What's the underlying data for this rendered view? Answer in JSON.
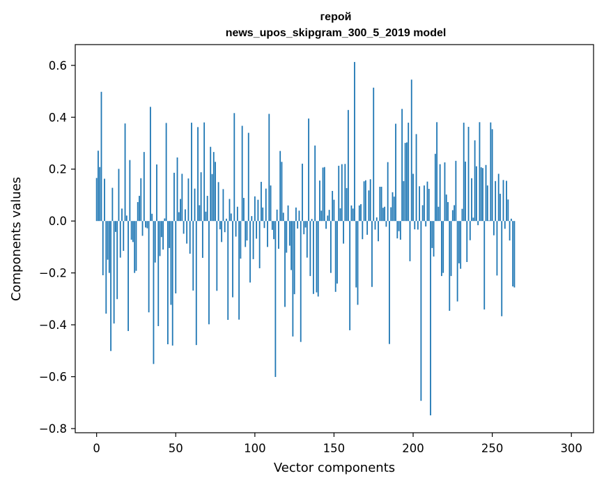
{
  "chart_data": {
    "type": "bar",
    "title": "герой",
    "subtitle": "news_upos_skipgram_300_5_2019 model",
    "xlabel": "Vector components",
    "ylabel": "Components values",
    "xlim": [
      -13.5,
      314
    ],
    "ylim": [
      -0.816,
      0.68
    ],
    "xticks": [
      0,
      50,
      100,
      150,
      200,
      250,
      300
    ],
    "yticks": [
      -0.8,
      -0.6,
      -0.4,
      -0.2,
      0.0,
      0.2,
      0.4,
      0.6
    ],
    "xtick_labels": [
      "0",
      "50",
      "100",
      "150",
      "200",
      "250",
      "300"
    ],
    "ytick_labels": [
      "−0.8",
      "−0.6",
      "−0.4",
      "−0.2",
      "0.0",
      "0.2",
      "0.4",
      "0.6"
    ],
    "bar_color": "#1f77b4",
    "bar_width": 0.8,
    "values": [
      0.166,
      0.271,
      0.208,
      0.498,
      -0.209,
      0.163,
      -0.357,
      -0.149,
      -0.2,
      -0.501,
      0.128,
      -0.395,
      -0.042,
      -0.301,
      0.201,
      -0.141,
      0.048,
      -0.115,
      0.376,
      0.021,
      -0.424,
      0.235,
      -0.072,
      -0.081,
      -0.2,
      -0.192,
      0.073,
      0.097,
      0.165,
      -0.057,
      0.266,
      -0.025,
      -0.028,
      -0.352,
      0.44,
      0.028,
      -0.551,
      -0.16,
      0.218,
      -0.405,
      -0.135,
      -0.062,
      -0.11,
      0.01,
      0.378,
      -0.475,
      -0.104,
      -0.323,
      -0.48,
      0.186,
      -0.279,
      0.245,
      0.034,
      0.085,
      0.182,
      -0.049,
      0.045,
      -0.087,
      0.164,
      -0.126,
      0.379,
      -0.268,
      0.125,
      -0.478,
      0.362,
      0.061,
      0.188,
      -0.142,
      0.38,
      0.036,
      0.097,
      -0.398,
      0.286,
      0.181,
      0.266,
      0.228,
      -0.269,
      0.15,
      -0.032,
      -0.081,
      0.123,
      -0.043,
      0.009,
      -0.381,
      0.085,
      0.029,
      -0.294,
      0.416,
      -0.06,
      0.055,
      -0.38,
      -0.145,
      0.367,
      0.089,
      -0.1,
      -0.075,
      0.34,
      -0.237,
      0.019,
      -0.147,
      0.095,
      -0.068,
      0.082,
      -0.182,
      0.151,
      0.052,
      -0.027,
      0.125,
      -0.1,
      0.413,
      0.137,
      -0.034,
      -0.07,
      -0.601,
      0.044,
      -0.107,
      0.27,
      0.228,
      0.032,
      -0.331,
      -0.122,
      0.06,
      -0.095,
      -0.189,
      -0.445,
      -0.282,
      0.052,
      -0.029,
      0.04,
      -0.466,
      0.221,
      -0.051,
      -0.025,
      -0.141,
      0.395,
      -0.212,
      0.008,
      -0.281,
      0.291,
      -0.275,
      -0.291,
      0.156,
      0.04,
      0.206,
      0.208,
      -0.03,
      0.021,
      0.043,
      -0.2,
      0.116,
      0.082,
      -0.273,
      -0.241,
      0.213,
      0.049,
      0.219,
      -0.087,
      0.22,
      0.127,
      0.428,
      -0.421,
      0.06,
      0.048,
      0.613,
      -0.256,
      -0.323,
      0.06,
      0.065,
      -0.07,
      0.153,
      0.157,
      -0.053,
      0.118,
      0.161,
      -0.254,
      0.514,
      -0.033,
      0.014,
      -0.078,
      0.132,
      0.132,
      0.051,
      0.055,
      -0.022,
      0.227,
      -0.474,
      0.053,
      0.111,
      0.094,
      0.375,
      -0.067,
      -0.039,
      -0.072,
      0.432,
      0.154,
      0.301,
      0.303,
      0.379,
      -0.155,
      0.545,
      0.182,
      -0.032,
      0.335,
      -0.033,
      0.134,
      -0.693,
      0.061,
      0.137,
      -0.021,
      0.152,
      0.124,
      -0.749,
      -0.104,
      -0.137,
      0.259,
      0.381,
      0.055,
      0.219,
      -0.212,
      -0.2,
      0.226,
      0.102,
      0.073,
      -0.346,
      -0.212,
      0.042,
      0.061,
      0.232,
      -0.31,
      -0.163,
      -0.184,
      0.047,
      0.379,
      0.229,
      -0.158,
      0.363,
      -0.074,
      0.165,
      0.013,
      0.311,
      0.211,
      -0.016,
      0.381,
      0.207,
      0.204,
      -0.341,
      0.216,
      0.137,
      0.002,
      0.38,
      0.354,
      -0.055,
      0.154,
      -0.21,
      0.182,
      0.105,
      -0.367,
      0.158,
      -0.03,
      0.155,
      0.083,
      -0.075,
      0.009,
      -0.252,
      -0.256
    ]
  }
}
